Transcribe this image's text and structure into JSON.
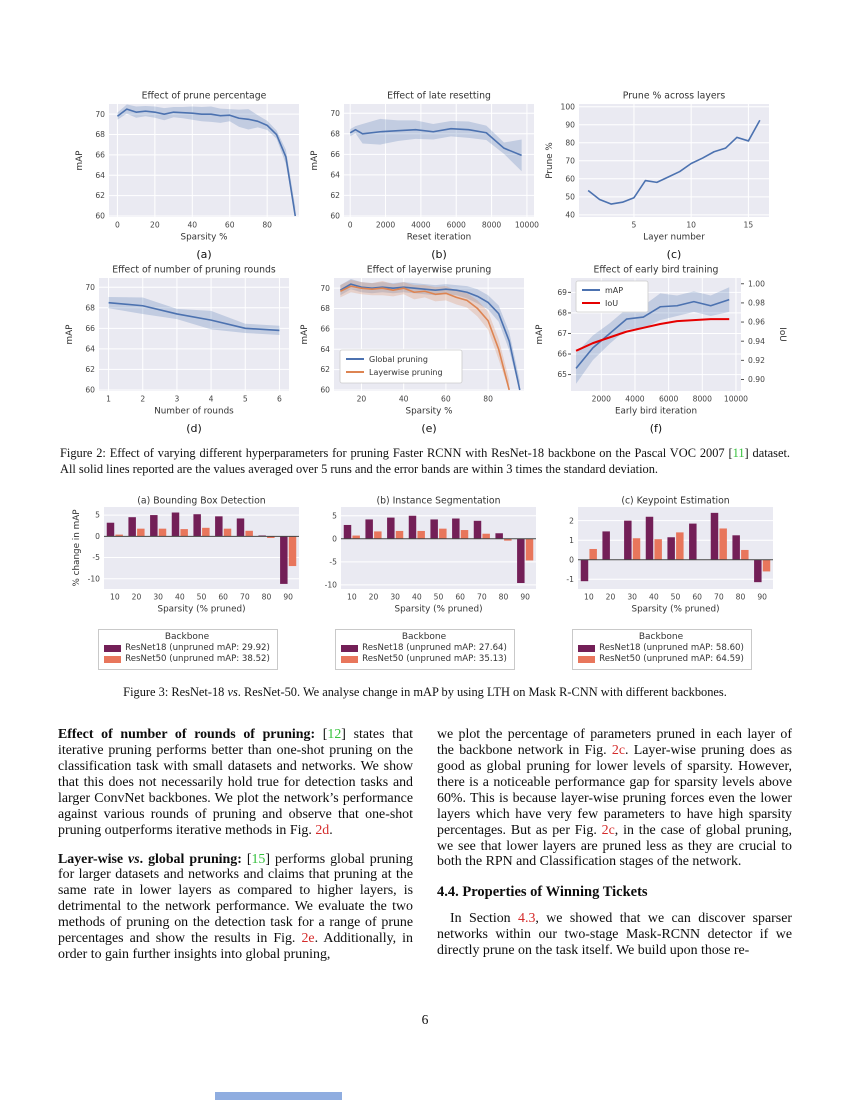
{
  "page_number": "6",
  "colors": {
    "blue": "#4c72b0",
    "orange": "#dd8452",
    "red": "#e50000",
    "purple": "#731f57",
    "salmon": "#e8765c",
    "plot_bg": "#eaeaf2",
    "tick": "#444444",
    "title": "#333333"
  },
  "figure2": {
    "caption": [
      {
        "t": "Figure 2: Effect of varying different hyperparameters for pruning Faster RCNN with ResNet-18 backbone on the Pascal VOC 2007 [",
        "s": "plain"
      },
      {
        "t": "11",
        "s": "cite"
      },
      {
        "t": "] dataset.  All solid lines reported are the values averaged over 5 runs and the error bands are within 3 times the standard deviation.",
        "s": "plain"
      }
    ]
  },
  "figure3": {
    "caption": [
      {
        "t": "Figure 3: ResNet-18 ",
        "s": "plain"
      },
      {
        "t": "vs",
        "s": "it"
      },
      {
        "t": ". ResNet-50. We analyse change in mAP by using LTH on Mask R-CNN with different backbones.",
        "s": "plain"
      }
    ],
    "legends": [
      {
        "title": "Backbone",
        "items": [
          {
            "label": "ResNet18 (unpruned mAP: 29.92)",
            "color": "purple"
          },
          {
            "label": "ResNet50 (unpruned mAP: 38.52)",
            "color": "salmon"
          }
        ]
      },
      {
        "title": "Backbone",
        "items": [
          {
            "label": "ResNet18 (unpruned mAP: 27.64)",
            "color": "purple"
          },
          {
            "label": "ResNet50 (unpruned mAP: 35.13)",
            "color": "salmon"
          }
        ]
      },
      {
        "title": "Backbone",
        "items": [
          {
            "label": "ResNet18 (unpruned mAP: 58.60)",
            "color": "purple"
          },
          {
            "label": "ResNet50 (unpruned mAP: 64.59)",
            "color": "salmon"
          }
        ]
      }
    ]
  },
  "chart_data": [
    {
      "id": "fig2a",
      "type": "line",
      "title": "Effect of prune percentage",
      "xlabel": "Sparsity %",
      "ylabel": "mAP",
      "sublabel": "(a)",
      "xlim": [
        -4.5,
        97
      ],
      "ylim": [
        59.9,
        71.0
      ],
      "xticks": [
        0,
        20,
        40,
        60,
        80
      ],
      "yticks": [
        60,
        62,
        64,
        66,
        68,
        70
      ],
      "series": [
        {
          "name": "mAP",
          "color": "blue",
          "x": [
            0,
            5,
            10,
            15,
            20,
            25,
            30,
            35,
            40,
            45,
            50,
            55,
            60,
            65,
            70,
            75,
            80,
            85,
            90,
            95
          ],
          "y": [
            69.8,
            70.5,
            70.2,
            70.3,
            70.2,
            70.0,
            70.2,
            70.15,
            70.1,
            70.0,
            70.0,
            69.85,
            69.9,
            69.6,
            69.5,
            69.3,
            68.9,
            68.0,
            65.8,
            60.0
          ],
          "band": [
            0.35,
            0.45,
            0.55,
            0.5,
            0.55,
            0.6,
            0.5,
            0.55,
            0.65,
            0.7,
            0.75,
            0.7,
            0.6,
            0.85,
            1.0,
            0.6,
            0.45,
            0.4,
            0.7,
            0.9
          ]
        }
      ]
    },
    {
      "id": "fig2b",
      "type": "line",
      "title": "Effect of late resetting",
      "xlabel": "Reset iteration",
      "ylabel": "mAP",
      "sublabel": "(b)",
      "xlim": [
        -350,
        10400
      ],
      "ylim": [
        59.9,
        70.9
      ],
      "xticks": [
        0,
        2000,
        4000,
        6000,
        8000,
        10000
      ],
      "yticks": [
        60,
        62,
        64,
        66,
        68,
        70
      ],
      "series": [
        {
          "name": "mAP",
          "color": "blue",
          "x": [
            0,
            300,
            700,
            1700,
            2700,
            3700,
            4700,
            5700,
            6700,
            7700,
            8700,
            9700
          ],
          "y": [
            68.1,
            68.4,
            68.0,
            68.2,
            68.3,
            68.4,
            68.2,
            68.5,
            68.4,
            68.1,
            66.6,
            65.9
          ],
          "band": [
            0.35,
            0.35,
            0.95,
            1.25,
            1.0,
            0.9,
            0.75,
            0.75,
            0.8,
            0.7,
            0.55,
            1.55
          ]
        }
      ]
    },
    {
      "id": "fig2c",
      "type": "line",
      "title": "Prune % across layers",
      "xlabel": "Layer number",
      "ylabel": "Prune %",
      "sublabel": "(c)",
      "xlim": [
        0.2,
        16.8
      ],
      "ylim": [
        38.8,
        101.5
      ],
      "xticks": [
        5,
        10,
        15
      ],
      "yticks": [
        40,
        50,
        60,
        70,
        80,
        90,
        100
      ],
      "series": [
        {
          "name": "Prune %",
          "color": "blue",
          "x": [
            1,
            2,
            3,
            4,
            5,
            6,
            7,
            8,
            9,
            10,
            11,
            12,
            13,
            14,
            15,
            16
          ],
          "y": [
            53.5,
            48.5,
            46.0,
            47.0,
            49.5,
            59.0,
            58.0,
            61.0,
            64.0,
            68.5,
            71.5,
            75.0,
            77.0,
            83.0,
            81.0,
            92.5
          ]
        }
      ]
    },
    {
      "id": "fig2d",
      "type": "line",
      "title": "Effect of number of pruning rounds",
      "xlabel": "Number of rounds",
      "ylabel": "mAP",
      "sublabel": "(d)",
      "xlim": [
        0.72,
        6.28
      ],
      "ylim": [
        59.9,
        70.9
      ],
      "xticks": [
        1,
        2,
        3,
        4,
        5,
        6
      ],
      "yticks": [
        60,
        62,
        64,
        66,
        68,
        70
      ],
      "series": [
        {
          "name": "mAP",
          "color": "blue",
          "x": [
            1,
            2,
            3,
            4,
            5,
            6
          ],
          "y": [
            68.5,
            68.2,
            67.4,
            66.8,
            66.0,
            65.8
          ],
          "band": [
            0.55,
            0.8,
            0.5,
            0.9,
            0.45,
            0.45
          ]
        }
      ]
    },
    {
      "id": "fig2e",
      "type": "line",
      "title": "Effect of layerwise pruning",
      "xlabel": "Sparsity %",
      "ylabel": "mAP",
      "sublabel": "(e)",
      "xlim": [
        7,
        97
      ],
      "ylim": [
        59.9,
        71.0
      ],
      "xticks": [
        20,
        40,
        60,
        80
      ],
      "yticks": [
        60,
        62,
        64,
        66,
        68,
        70
      ],
      "legend": {
        "ox": 6,
        "oy": 72,
        "w": 122,
        "h": 33,
        "items": [
          {
            "label": "Global pruning",
            "color": "blue"
          },
          {
            "label": "Layerwise pruning",
            "color": "orange"
          }
        ]
      },
      "series": [
        {
          "name": "Global pruning",
          "color": "blue",
          "x": [
            10,
            15,
            20,
            25,
            30,
            35,
            40,
            45,
            50,
            55,
            60,
            65,
            70,
            75,
            80,
            85,
            90,
            95
          ],
          "y": [
            69.8,
            70.4,
            70.1,
            70.0,
            70.1,
            70.0,
            70.1,
            70.0,
            69.9,
            69.8,
            69.9,
            69.8,
            69.6,
            69.2,
            68.6,
            67.5,
            64.8,
            60.0
          ],
          "band": [
            0.5,
            0.5,
            0.5,
            0.5,
            0.5,
            0.5,
            0.5,
            0.5,
            0.5,
            0.5,
            0.5,
            0.5,
            0.6,
            0.7,
            0.7,
            0.8,
            0.9,
            0.9
          ]
        },
        {
          "name": "Layerwise pruning",
          "color": "orange",
          "x": [
            10,
            15,
            20,
            25,
            30,
            35,
            40,
            45,
            50,
            55,
            60,
            65,
            70,
            75,
            80,
            85,
            90
          ],
          "y": [
            69.7,
            70.2,
            70.0,
            69.9,
            70.0,
            69.8,
            70.0,
            69.6,
            69.7,
            69.4,
            69.5,
            69.1,
            68.8,
            68.0,
            66.8,
            64.0,
            60.0
          ],
          "band": [
            0.6,
            0.6,
            0.6,
            0.6,
            0.7,
            0.6,
            0.6,
            0.7,
            0.6,
            0.7,
            0.7,
            0.7,
            0.7,
            0.8,
            0.9,
            1.0,
            1.0
          ]
        }
      ]
    },
    {
      "id": "fig2f",
      "type": "line",
      "title": "Effect of early bird training",
      "xlabel": "Early bird iteration",
      "ylabel": "mAP",
      "ylabel_right": "IoU",
      "sublabel": "(f)",
      "xlim": [
        200,
        10300
      ],
      "ylim": [
        64.2,
        69.7
      ],
      "ylim_right": [
        0.888,
        1.006
      ],
      "tickmarks": true,
      "xticks": [
        2000,
        4000,
        6000,
        8000,
        10000
      ],
      "yticks": [
        65,
        66,
        67,
        68,
        69
      ],
      "yticks_right": [
        0.9,
        0.92,
        0.94,
        0.96,
        0.98,
        1.0
      ],
      "ytick_labels_right": [
        "0.90",
        "0.92",
        "0.94",
        "0.96",
        "0.98",
        "1.00"
      ],
      "legend": {
        "ox": 5,
        "oy": 3,
        "w": 72,
        "h": 31,
        "items": [
          {
            "label": "mAP",
            "color": "blue"
          },
          {
            "label": "IoU",
            "color": "red"
          }
        ]
      },
      "series": [
        {
          "name": "mAP",
          "color": "blue",
          "x": [
            500,
            1500,
            2500,
            3500,
            4500,
            5500,
            6500,
            7500,
            8500,
            9600
          ],
          "y": [
            65.3,
            66.3,
            67.0,
            67.7,
            67.8,
            68.3,
            68.35,
            68.55,
            68.35,
            68.65
          ],
          "band": [
            0.75,
            0.6,
            0.5,
            0.5,
            0.55,
            0.65,
            0.5,
            0.5,
            0.5,
            0.6
          ]
        },
        {
          "name": "IoU",
          "color": "red",
          "axis": "right",
          "width": 2,
          "x": [
            500,
            1500,
            2500,
            3500,
            4500,
            5500,
            6500,
            7500,
            8500,
            9600
          ],
          "y": [
            0.93,
            0.938,
            0.944,
            0.95,
            0.954,
            0.958,
            0.961,
            0.962,
            0.963,
            0.963
          ]
        }
      ]
    },
    {
      "id": "fig3a",
      "type": "bar",
      "title": "(a) Bounding Box Detection",
      "xlabel": "Sparsity (% pruned)",
      "ylabel": "% change in mAP",
      "categories": [
        10,
        20,
        30,
        40,
        50,
        60,
        70,
        80,
        90
      ],
      "yticks": [
        5,
        0,
        -5,
        -10
      ],
      "ylim": [
        -12.4,
        6.9
      ],
      "series": [
        {
          "name": "ResNet18",
          "color": "purple",
          "values": [
            3.2,
            4.5,
            5.0,
            5.6,
            5.2,
            4.7,
            4.2,
            0.2,
            -11.2
          ]
        },
        {
          "name": "ResNet50",
          "color": "salmon",
          "values": [
            0.4,
            1.8,
            1.8,
            1.7,
            2.0,
            1.8,
            1.3,
            -0.4,
            -7.0
          ]
        }
      ]
    },
    {
      "id": "fig3b",
      "type": "bar",
      "title": "(b) Instance Segmentation",
      "xlabel": "Sparsity (% pruned)",
      "ylabel": "",
      "categories": [
        10,
        20,
        30,
        40,
        50,
        60,
        70,
        80,
        90
      ],
      "yticks": [
        5,
        0,
        -5,
        -10
      ],
      "ylim": [
        -10.9,
        6.9
      ],
      "series": [
        {
          "name": "ResNet18",
          "color": "purple",
          "values": [
            3.0,
            4.2,
            4.6,
            5.0,
            4.2,
            4.4,
            3.9,
            1.2,
            -9.6
          ]
        },
        {
          "name": "ResNet50",
          "color": "salmon",
          "values": [
            0.7,
            1.6,
            1.7,
            1.7,
            2.2,
            1.9,
            1.1,
            -0.4,
            -4.7
          ]
        }
      ]
    },
    {
      "id": "fig3c",
      "type": "bar",
      "title": "(c) Keypoint Estimation",
      "xlabel": "Sparsity (% pruned)",
      "ylabel": "",
      "categories": [
        10,
        20,
        30,
        40,
        50,
        60,
        70,
        80,
        90
      ],
      "yticks": [
        2,
        1,
        0,
        -1
      ],
      "ylim": [
        -1.5,
        2.7
      ],
      "series": [
        {
          "name": "ResNet18",
          "color": "purple",
          "values": [
            -1.1,
            1.45,
            2.0,
            2.2,
            1.15,
            1.85,
            2.4,
            1.25,
            -1.15
          ]
        },
        {
          "name": "ResNet50",
          "color": "salmon",
          "values": [
            0.55,
            0,
            1.1,
            1.05,
            1.4,
            0,
            1.6,
            0.5,
            -0.6
          ]
        }
      ]
    }
  ],
  "text": {
    "left_p1": [
      {
        "t": "Effect of number of rounds of pruning: ",
        "s": "bold"
      },
      {
        "t": "[",
        "s": "plain"
      },
      {
        "t": "12",
        "s": "cite"
      },
      {
        "t": "] states that iterative pruning performs better than one-shot pruning on the classification task with small datasets and networks. We show that this does not necessarily hold true for detection tasks and larger ConvNet backbones. We plot the network’s performance against various rounds of pruning and observe that one-shot pruning outperforms iterative methods in Fig. ",
        "s": "plain"
      },
      {
        "t": "2d",
        "s": "ref"
      },
      {
        "t": ".",
        "s": "plain"
      }
    ],
    "left_p2": [
      {
        "t": "Layer-wise ",
        "s": "bold"
      },
      {
        "t": "vs",
        "s": "boldit"
      },
      {
        "t": ". global pruning: ",
        "s": "bold"
      },
      {
        "t": "[",
        "s": "plain"
      },
      {
        "t": "15",
        "s": "cite"
      },
      {
        "t": "] performs global pruning for larger datasets and networks and claims that pruning at the same rate in lower layers as compared to higher layers, is detrimental to the network performance. We evaluate the two methods of pruning on the detection task for a range of prune percentages and show the results in Fig. ",
        "s": "plain"
      },
      {
        "t": "2e",
        "s": "ref"
      },
      {
        "t": ". Additionally, in order to gain further insights into global pruning,",
        "s": "plain"
      }
    ],
    "right_p1": [
      {
        "t": "we plot the percentage of parameters pruned in each layer of the backbone network in Fig. ",
        "s": "plain"
      },
      {
        "t": "2c",
        "s": "ref"
      },
      {
        "t": ".  Layer-wise pruning does as good as global pruning for lower levels of sparsity. However, there is a noticeable performance gap for sparsity levels above 60%.  This is because layer-wise pruning forces even the lower layers which have very few parameters to have high sparsity percentages.  But as per Fig. ",
        "s": "plain"
      },
      {
        "t": "2c",
        "s": "ref"
      },
      {
        "t": ", in the case of global pruning, we see that lower layers are pruned less as they are crucial to both the RPN and Classification stages of the network.",
        "s": "plain"
      }
    ],
    "heading": "4.4. Properties of Winning Tickets",
    "right_p2": [
      {
        "t": "In Section ",
        "s": "plain"
      },
      {
        "t": "4.3",
        "s": "ref"
      },
      {
        "t": ", we showed that we can discover sparser networks within our two-stage Mask-RCNN detector if we directly prune on the task itself.  We build upon those re-",
        "s": "plain"
      }
    ]
  }
}
